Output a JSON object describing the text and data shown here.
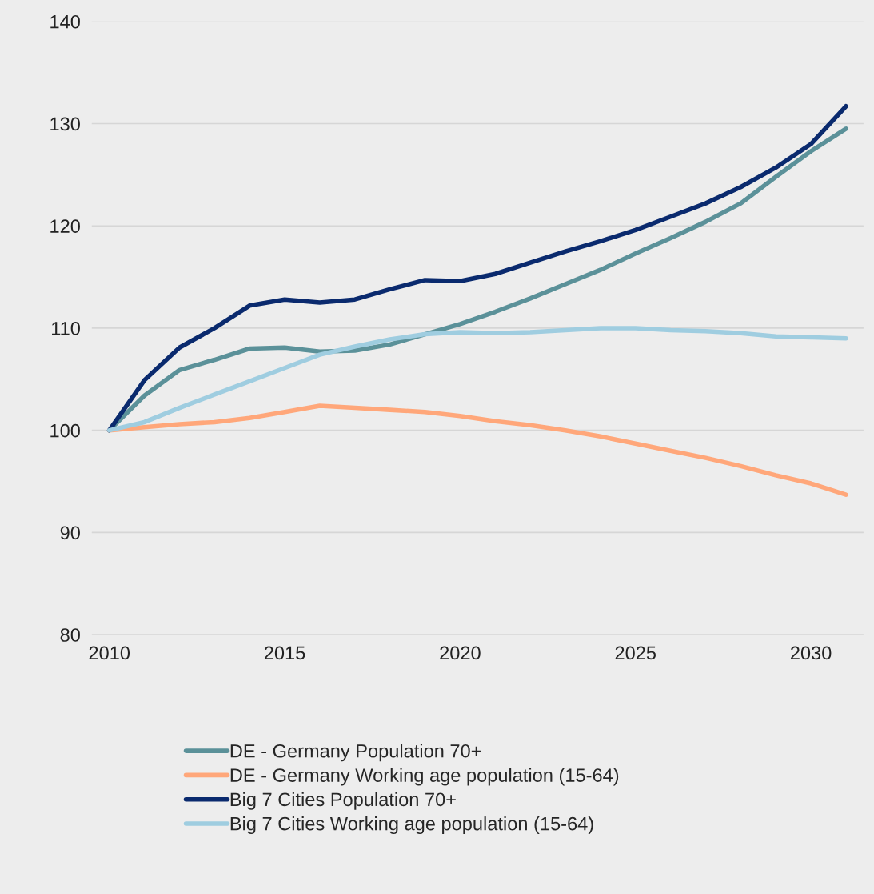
{
  "chart_data": {
    "type": "line",
    "x": [
      2010,
      2011,
      2012,
      2013,
      2014,
      2015,
      2016,
      2017,
      2018,
      2019,
      2020,
      2021,
      2022,
      2023,
      2024,
      2025,
      2026,
      2027,
      2028,
      2029,
      2030,
      2031
    ],
    "series": [
      {
        "name": "DE - Germany Population 70+",
        "color": "#5b9199",
        "values": [
          100,
          103.4,
          105.9,
          106.9,
          108.0,
          108.1,
          107.7,
          107.8,
          108.4,
          109.4,
          110.4,
          111.6,
          112.9,
          114.3,
          115.7,
          117.3,
          118.8,
          120.4,
          122.2,
          124.8,
          127.3,
          129.5
        ]
      },
      {
        "name": "DE - Germany Working age population (15-64)",
        "color": "#ffa77a",
        "values": [
          100,
          100.3,
          100.6,
          100.8,
          101.2,
          101.8,
          102.4,
          102.2,
          102.0,
          101.8,
          101.4,
          100.9,
          100.5,
          100.0,
          99.4,
          98.7,
          98.0,
          97.3,
          96.5,
          95.6,
          94.8,
          93.7
        ]
      },
      {
        "name": "Big 7 Cities Population 70+",
        "color": "#0a2a6e",
        "values": [
          100,
          104.9,
          108.1,
          110.0,
          112.2,
          112.8,
          112.5,
          112.8,
          113.8,
          114.7,
          114.6,
          115.3,
          116.4,
          117.5,
          118.5,
          119.6,
          120.9,
          122.2,
          123.8,
          125.7,
          128.0,
          131.7
        ]
      },
      {
        "name": "Big 7 Cities Working age population (15-64)",
        "color": "#9fcde0",
        "values": [
          100,
          100.8,
          102.2,
          103.5,
          104.8,
          106.1,
          107.4,
          108.2,
          108.9,
          109.4,
          109.6,
          109.5,
          109.6,
          109.8,
          110.0,
          110.0,
          109.8,
          109.7,
          109.5,
          109.2,
          109.1,
          109.0
        ]
      }
    ],
    "xlim": [
      2009.5,
      2031.5
    ],
    "xticks": [
      2010,
      2015,
      2020,
      2025,
      2030
    ],
    "ylim": [
      80,
      140
    ],
    "yticks": [
      80,
      90,
      100,
      110,
      120,
      130,
      140
    ],
    "grid": "y",
    "legend": "bottom",
    "line_style": "solid",
    "marker": "none"
  }
}
